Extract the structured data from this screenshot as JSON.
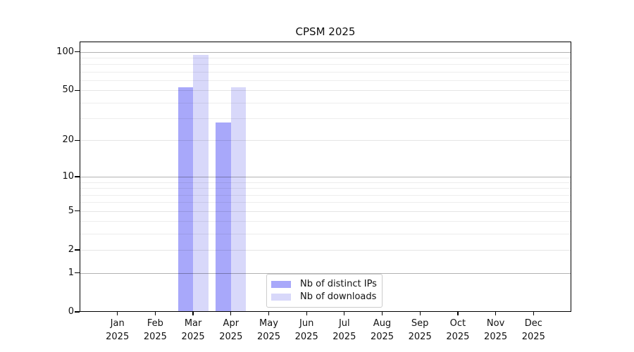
{
  "chart_data": {
    "type": "bar",
    "title": "CPSM 2025",
    "categories": [
      "Jan",
      "Feb",
      "Mar",
      "Apr",
      "May",
      "Jun",
      "Jul",
      "Aug",
      "Sep",
      "Oct",
      "Nov",
      "Dec"
    ],
    "year_label": "2025",
    "series": [
      {
        "name": "Nb of distinct IPs",
        "color": "#a8a8fa",
        "values": [
          0,
          0,
          53,
          28,
          0,
          0,
          0,
          0,
          0,
          0,
          0,
          0
        ]
      },
      {
        "name": "Nb of downloads",
        "color": "#d8d8fa",
        "values": [
          0,
          0,
          95,
          53,
          0,
          0,
          0,
          0,
          0,
          0,
          0,
          0
        ]
      }
    ],
    "yscale": "log10(1+x)",
    "ylim": [
      0,
      120
    ],
    "ytick_values": [
      0,
      1,
      2,
      5,
      10,
      20,
      50,
      100
    ],
    "ytick_labels": [
      "0",
      "1",
      "2",
      "5",
      "10",
      "20",
      "50",
      "100"
    ],
    "major_gridline_values": [
      1,
      10,
      100
    ],
    "minor_gridline_values": [
      3,
      4,
      6,
      7,
      8,
      9,
      30,
      40,
      60,
      70,
      80,
      90
    ],
    "grid": true,
    "legend_position": "lower center",
    "axis_color": "#000000",
    "background_color": "#ffffff"
  }
}
